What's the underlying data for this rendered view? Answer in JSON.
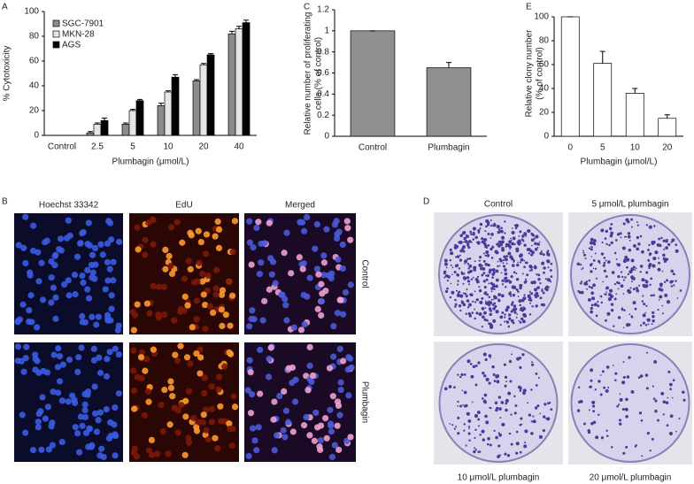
{
  "chart_data": [
    {
      "type": "bar",
      "panel": "A",
      "ylabel": "% Cytotoxicity",
      "xlabel": "Plumbagin (μmol/L)",
      "categories": [
        "Control",
        "2.5",
        "5",
        "10",
        "20",
        "40"
      ],
      "series": [
        {
          "name": "SGC-7901",
          "color": "#8c8c8c",
          "values": [
            0,
            2,
            9,
            24,
            44,
            82
          ],
          "errors": [
            0,
            1,
            1,
            2,
            1,
            2
          ]
        },
        {
          "name": "MKN-28",
          "color": "#e6e6e6",
          "values": [
            0,
            9,
            20,
            35,
            57,
            86
          ],
          "errors": [
            0,
            1,
            1,
            1,
            1,
            2
          ]
        },
        {
          "name": "AGS",
          "color": "#000000",
          "values": [
            0,
            12,
            28,
            47,
            65,
            91
          ],
          "errors": [
            0,
            2,
            1,
            2,
            1,
            2
          ]
        }
      ],
      "ylim": [
        0,
        100
      ],
      "yticks": [
        0,
        20,
        40,
        60,
        80,
        100
      ]
    },
    {
      "type": "bar",
      "panel": "C",
      "ylabel": [
        "Relative number of proliferating",
        "cells (% of control)"
      ],
      "categories": [
        "Control",
        "Plumbagin"
      ],
      "values": [
        1,
        0.65
      ],
      "errors": [
        0,
        0.05
      ],
      "color": "#909090",
      "ylim": [
        0,
        1.2
      ],
      "yticks": [
        0,
        0.2,
        0.4,
        0.6,
        0.8,
        1,
        1.2
      ]
    },
    {
      "type": "bar",
      "panel": "E",
      "ylabel": [
        "Relative clony number",
        "(% of control)"
      ],
      "xlabel": "Plumbagin (μmol/L)",
      "categories": [
        "0",
        "5",
        "10",
        "20"
      ],
      "values": [
        100,
        61,
        36,
        15
      ],
      "errors": [
        0,
        10,
        4,
        3
      ],
      "color": "#ffffff",
      "ylim": [
        0,
        100
      ],
      "yticks": [
        0,
        20,
        40,
        60,
        80,
        100
      ]
    }
  ],
  "panel_b": {
    "letter": "B",
    "columns": [
      "Hoechst 33342",
      "EdU",
      "Merged"
    ],
    "rows": [
      "Control",
      "Plumbagin"
    ]
  },
  "panel_d": {
    "letter": "D",
    "labels": [
      "Control",
      "5 μmol/L plumbagin",
      "10 μmol/L plumbagin",
      "20 μmol/L plumbagin"
    ]
  }
}
